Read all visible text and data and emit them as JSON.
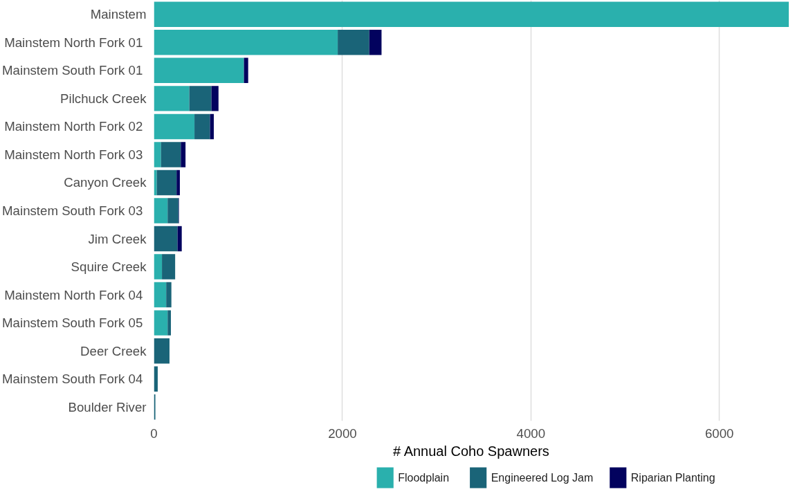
{
  "chart_data": {
    "type": "bar",
    "orientation": "horizontal",
    "stacked": true,
    "xlabel": "# Annual Coho Spawners",
    "categories": [
      "Mainstem",
      "Mainstem North Fork  01",
      "Mainstem South Fork  01",
      "Pilchuck Creek",
      "Mainstem North Fork  02",
      "Mainstem North Fork  03",
      "Canyon Creek",
      "Mainstem South Fork  03",
      "Jim Creek",
      "Squire Creek",
      "Mainstem North Fork  04",
      "Mainstem South Fork  05",
      "Deer Creek",
      "Mainstem South Fork  04",
      "Boulder River"
    ],
    "series": [
      {
        "name": "Floodplain",
        "color": "#2ab0ad",
        "values": [
          6740,
          1950,
          955,
          375,
          430,
          75,
          30,
          145,
          0,
          85,
          130,
          145,
          0,
          0,
          0
        ]
      },
      {
        "name": "Engineered Log Jam",
        "color": "#1a6478",
        "values": [
          0,
          335,
          0,
          235,
          165,
          210,
          210,
          115,
          250,
          140,
          55,
          35,
          165,
          40,
          15
        ]
      },
      {
        "name": "Riparian Planting",
        "color": "#02025e",
        "values": [
          0,
          130,
          45,
          75,
          40,
          50,
          35,
          5,
          45,
          0,
          0,
          0,
          0,
          0,
          0
        ]
      }
    ],
    "xlim": [
      0,
      6740
    ],
    "xticks": [
      0,
      2000,
      4000,
      6000
    ],
    "grid": "x",
    "legend": "bottom"
  }
}
